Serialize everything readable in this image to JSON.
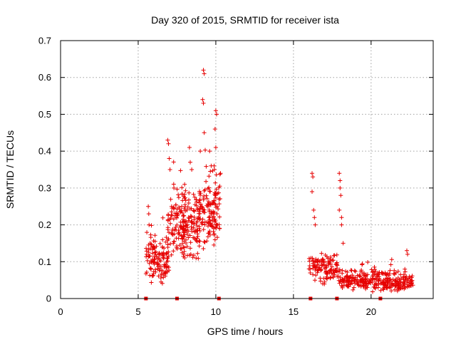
{
  "chart_data": {
    "type": "scatter",
    "title": "Day 320 of 2015, SRMTID for receiver ista",
    "xlabel": "GPS time / hours",
    "ylabel": "SRMTID / TECUs",
    "xlim": [
      0,
      24
    ],
    "ylim": [
      0,
      0.7
    ],
    "x_ticks": [
      0,
      5,
      10,
      15,
      20
    ],
    "x_tick_labels": [
      "0",
      "5",
      "10",
      "15",
      "20"
    ],
    "y_ticks": [
      0,
      0.1,
      0.2,
      0.3,
      0.4,
      0.5,
      0.6,
      0.7
    ],
    "y_tick_labels": [
      "0",
      "0.1",
      "0.2",
      "0.3",
      "0.4",
      "0.5",
      "0.6",
      "0.7"
    ],
    "grid": true,
    "marker": "+",
    "colors": {
      "points": "#e60000",
      "gap_markers": "#e60000",
      "grid": "#a0a0a0",
      "axis": "#000000"
    },
    "gap_markers_x": [
      5.5,
      7.5,
      10.2,
      16.1,
      17.8,
      20.6
    ],
    "clusters": [
      {
        "name": "early-1",
        "x_start": 5.5,
        "x_end": 6.1,
        "y_base": 0.11,
        "y_spread": 0.05,
        "n": 55
      },
      {
        "name": "early-2",
        "x_start": 6.1,
        "x_end": 7.0,
        "y_base": 0.1,
        "y_spread": 0.05,
        "n": 80
      },
      {
        "name": "early-3",
        "x_start": 6.9,
        "x_end": 8.0,
        "y_base": 0.2,
        "y_spread": 0.08,
        "n": 110
      },
      {
        "name": "early-4",
        "x_start": 7.9,
        "x_end": 9.0,
        "y_base": 0.2,
        "y_spread": 0.08,
        "n": 110
      },
      {
        "name": "early-5",
        "x_start": 8.9,
        "x_end": 10.3,
        "y_base": 0.24,
        "y_spread": 0.08,
        "n": 140
      },
      {
        "name": "late-1",
        "x_start": 16.0,
        "x_end": 17.9,
        "y_base": 0.08,
        "y_spread": 0.03,
        "n": 120
      },
      {
        "name": "late-2",
        "x_start": 17.9,
        "x_end": 20.5,
        "y_base": 0.05,
        "y_spread": 0.025,
        "n": 170
      },
      {
        "name": "late-3",
        "x_start": 20.5,
        "x_end": 22.7,
        "y_base": 0.045,
        "y_spread": 0.025,
        "n": 150
      }
    ],
    "notable_points": [
      {
        "x": 5.65,
        "y": 0.25
      },
      {
        "x": 5.68,
        "y": 0.23
      },
      {
        "x": 5.7,
        "y": 0.2
      },
      {
        "x": 6.9,
        "y": 0.43
      },
      {
        "x": 6.95,
        "y": 0.42
      },
      {
        "x": 7.0,
        "y": 0.38
      },
      {
        "x": 7.05,
        "y": 0.35
      },
      {
        "x": 7.3,
        "y": 0.3
      },
      {
        "x": 8.3,
        "y": 0.41
      },
      {
        "x": 8.35,
        "y": 0.37
      },
      {
        "x": 8.45,
        "y": 0.35
      },
      {
        "x": 9.2,
        "y": 0.62
      },
      {
        "x": 9.25,
        "y": 0.61
      },
      {
        "x": 9.15,
        "y": 0.54
      },
      {
        "x": 9.2,
        "y": 0.53
      },
      {
        "x": 9.25,
        "y": 0.45
      },
      {
        "x": 9.0,
        "y": 0.4
      },
      {
        "x": 9.6,
        "y": 0.4
      },
      {
        "x": 9.7,
        "y": 0.36
      },
      {
        "x": 10.0,
        "y": 0.51
      },
      {
        "x": 10.05,
        "y": 0.5
      },
      {
        "x": 9.95,
        "y": 0.46
      },
      {
        "x": 10.0,
        "y": 0.41
      },
      {
        "x": 10.3,
        "y": 0.34
      },
      {
        "x": 16.2,
        "y": 0.34
      },
      {
        "x": 16.25,
        "y": 0.33
      },
      {
        "x": 16.2,
        "y": 0.29
      },
      {
        "x": 16.3,
        "y": 0.24
      },
      {
        "x": 16.35,
        "y": 0.22
      },
      {
        "x": 16.4,
        "y": 0.2
      },
      {
        "x": 17.95,
        "y": 0.34
      },
      {
        "x": 18.0,
        "y": 0.32
      },
      {
        "x": 18.0,
        "y": 0.3
      },
      {
        "x": 18.05,
        "y": 0.28
      },
      {
        "x": 17.95,
        "y": 0.24
      },
      {
        "x": 18.1,
        "y": 0.22
      },
      {
        "x": 18.1,
        "y": 0.2
      },
      {
        "x": 18.2,
        "y": 0.15
      },
      {
        "x": 22.3,
        "y": 0.13
      },
      {
        "x": 22.35,
        "y": 0.12
      }
    ]
  }
}
